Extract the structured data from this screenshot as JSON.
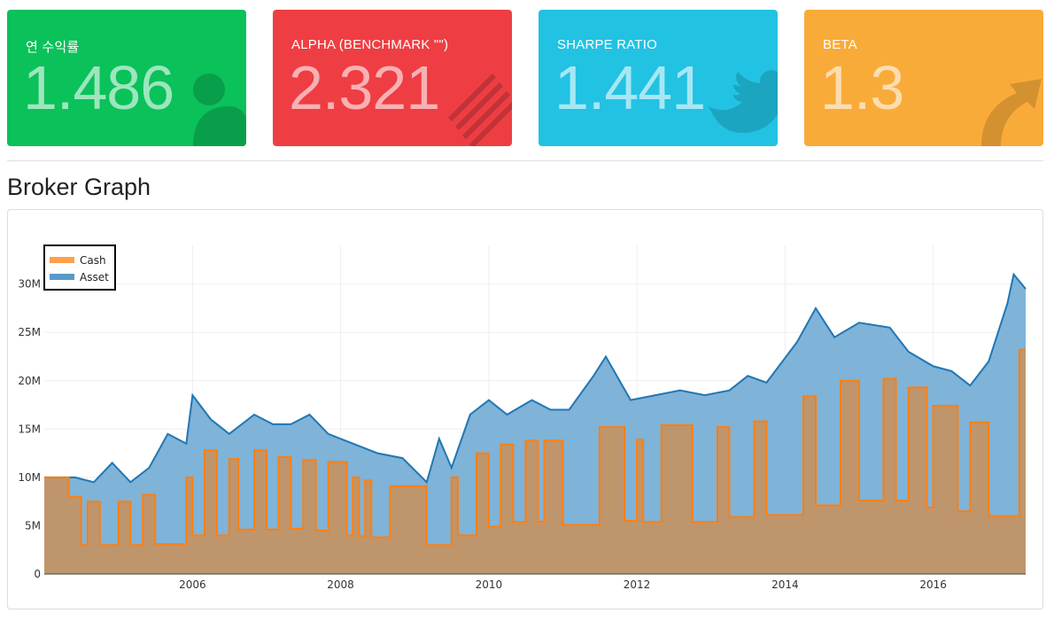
{
  "cards": [
    {
      "label": "연 수익률",
      "value": "1.486",
      "color": "#0bc15a",
      "icon": "user-icon"
    },
    {
      "label": "ALPHA (BENCHMARK \"\")",
      "value": "2.321",
      "color": "#ee3e43",
      "icon": "bar-pattern-icon"
    },
    {
      "label": "SHARPE RATIO",
      "value": "1.441",
      "color": "#22c2e3",
      "icon": "twitter-bird-icon"
    },
    {
      "label": "BETA",
      "value": "1.3",
      "color": "#f9ab39",
      "icon": "arrow-up-right-icon"
    }
  ],
  "section_title": "Broker Graph",
  "chart_data": {
    "type": "area",
    "x_type": "date",
    "xlim": [
      "2004-01-01",
      "2017-04-01"
    ],
    "ylim": [
      0,
      34000000
    ],
    "y_ticks": [
      0,
      5000000,
      10000000,
      15000000,
      20000000,
      25000000,
      30000000
    ],
    "y_tick_labels": [
      "0",
      "5M",
      "10M",
      "15M",
      "20M",
      "25M",
      "30M"
    ],
    "x_ticks": [
      "2006-01-01",
      "2008-01-01",
      "2010-01-01",
      "2012-01-01",
      "2014-01-01",
      "2016-01-01"
    ],
    "x_tick_labels": [
      "2006",
      "2008",
      "2010",
      "2012",
      "2014",
      "2016"
    ],
    "grid": true,
    "legend_position": "top-left",
    "series": [
      {
        "name": "Cash",
        "color": "#ff7f0e",
        "fill": "#bf956c",
        "step": true,
        "points": [
          [
            "2004-01-01",
            10000000
          ],
          [
            "2004-05-01",
            8000000
          ],
          [
            "2004-07-01",
            3000000
          ],
          [
            "2004-08-01",
            7500000
          ],
          [
            "2004-10-01",
            3000000
          ],
          [
            "2005-01-01",
            7500000
          ],
          [
            "2005-03-01",
            3000000
          ],
          [
            "2005-05-01",
            8200000
          ],
          [
            "2005-07-01",
            3100000
          ],
          [
            "2005-12-01",
            10000000
          ],
          [
            "2006-01-01",
            4000000
          ],
          [
            "2006-03-01",
            12800000
          ],
          [
            "2006-05-01",
            4000000
          ],
          [
            "2006-07-01",
            11900000
          ],
          [
            "2006-08-15",
            4600000
          ],
          [
            "2006-11-01",
            12800000
          ],
          [
            "2007-01-01",
            4600000
          ],
          [
            "2007-03-01",
            12100000
          ],
          [
            "2007-05-01",
            4700000
          ],
          [
            "2007-07-01",
            11800000
          ],
          [
            "2007-09-01",
            4500000
          ],
          [
            "2007-11-01",
            11600000
          ],
          [
            "2008-02-01",
            4000000
          ],
          [
            "2008-03-01",
            10000000
          ],
          [
            "2008-04-01",
            3900000
          ],
          [
            "2008-05-01",
            9700000
          ],
          [
            "2008-06-01",
            3800000
          ],
          [
            "2008-09-01",
            9100000
          ],
          [
            "2009-03-01",
            3000000
          ],
          [
            "2009-07-01",
            10000000
          ],
          [
            "2009-08-01",
            4000000
          ],
          [
            "2009-11-01",
            12500000
          ],
          [
            "2010-01-01",
            4900000
          ],
          [
            "2010-03-01",
            13400000
          ],
          [
            "2010-05-01",
            5400000
          ],
          [
            "2010-07-01",
            13800000
          ],
          [
            "2010-09-01",
            5400000
          ],
          [
            "2010-10-01",
            13800000
          ],
          [
            "2011-01-01",
            5100000
          ],
          [
            "2011-07-01",
            15200000
          ],
          [
            "2011-11-01",
            5500000
          ],
          [
            "2012-01-01",
            13900000
          ],
          [
            "2012-02-01",
            5400000
          ],
          [
            "2012-05-01",
            15400000
          ],
          [
            "2012-10-01",
            5400000
          ],
          [
            "2013-02-01",
            15200000
          ],
          [
            "2013-04-01",
            5900000
          ],
          [
            "2013-08-01",
            15800000
          ],
          [
            "2013-10-01",
            6100000
          ],
          [
            "2014-04-01",
            18400000
          ],
          [
            "2014-06-01",
            7100000
          ],
          [
            "2014-10-01",
            20000000
          ],
          [
            "2015-01-01",
            7600000
          ],
          [
            "2015-05-01",
            20200000
          ],
          [
            "2015-07-01",
            7600000
          ],
          [
            "2015-09-01",
            19300000
          ],
          [
            "2015-12-01",
            6900000
          ],
          [
            "2016-01-01",
            17400000
          ],
          [
            "2016-05-01",
            6500000
          ],
          [
            "2016-07-01",
            15700000
          ],
          [
            "2016-10-01",
            6000000
          ],
          [
            "2017-03-01",
            23200000
          ],
          [
            "2017-04-01",
            23200000
          ]
        ]
      },
      {
        "name": "Asset",
        "color": "#1f77b4",
        "fill": "#7fb3d8",
        "step": false,
        "points": [
          [
            "2004-01-01",
            10000000
          ],
          [
            "2004-06-01",
            10000000
          ],
          [
            "2004-09-01",
            9500000
          ],
          [
            "2004-12-01",
            11500000
          ],
          [
            "2005-03-01",
            9500000
          ],
          [
            "2005-06-01",
            11000000
          ],
          [
            "2005-09-01",
            14500000
          ],
          [
            "2005-12-01",
            13500000
          ],
          [
            "2006-01-01",
            18500000
          ],
          [
            "2006-04-01",
            16000000
          ],
          [
            "2006-07-01",
            14500000
          ],
          [
            "2006-11-01",
            16500000
          ],
          [
            "2007-02-01",
            15500000
          ],
          [
            "2007-05-01",
            15500000
          ],
          [
            "2007-08-01",
            16500000
          ],
          [
            "2007-11-01",
            14500000
          ],
          [
            "2008-03-01",
            13500000
          ],
          [
            "2008-07-01",
            12500000
          ],
          [
            "2008-11-01",
            12000000
          ],
          [
            "2009-03-01",
            9500000
          ],
          [
            "2009-05-01",
            14000000
          ],
          [
            "2009-07-01",
            11000000
          ],
          [
            "2009-10-01",
            16500000
          ],
          [
            "2010-01-01",
            18000000
          ],
          [
            "2010-04-01",
            16500000
          ],
          [
            "2010-08-01",
            18000000
          ],
          [
            "2010-11-01",
            17000000
          ],
          [
            "2011-02-01",
            17000000
          ],
          [
            "2011-06-01",
            20500000
          ],
          [
            "2011-08-01",
            22500000
          ],
          [
            "2011-12-01",
            18000000
          ],
          [
            "2012-04-01",
            18500000
          ],
          [
            "2012-08-01",
            19000000
          ],
          [
            "2012-12-01",
            18500000
          ],
          [
            "2013-04-01",
            19000000
          ],
          [
            "2013-07-01",
            20500000
          ],
          [
            "2013-10-01",
            19800000
          ],
          [
            "2014-03-01",
            24000000
          ],
          [
            "2014-06-01",
            27500000
          ],
          [
            "2014-09-01",
            24500000
          ],
          [
            "2015-01-01",
            26000000
          ],
          [
            "2015-06-01",
            25500000
          ],
          [
            "2015-09-01",
            23000000
          ],
          [
            "2016-01-01",
            21500000
          ],
          [
            "2016-04-01",
            21000000
          ],
          [
            "2016-07-01",
            19500000
          ],
          [
            "2016-10-01",
            22000000
          ],
          [
            "2017-01-01",
            28000000
          ],
          [
            "2017-02-01",
            31000000
          ],
          [
            "2017-04-01",
            29500000
          ]
        ]
      }
    ]
  }
}
